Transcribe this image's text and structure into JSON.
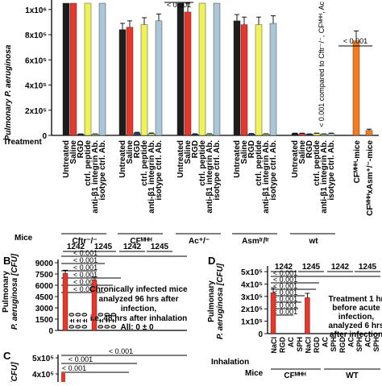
{
  "chart_data": [
    {
      "type": "bar",
      "panel": "A",
      "ylabel": "Pulmonary P. aeruginosa",
      "yticks": [
        "0",
        "2x10⁵",
        "4x10⁵",
        "6x10⁵",
        "8x10⁵",
        "1x10⁶"
      ],
      "ylim": [
        0,
        1050000
      ],
      "row_treatment_label": "Treatment",
      "row_mice_label": "Mice",
      "categories": [
        "Untreated",
        "Saline",
        "RGD",
        "ctrl. peptide",
        "anti-β1 integrin Ab.",
        "isotype ctrl. Ab."
      ],
      "groups": [
        {
          "mice": "Cftr⁻/⁻",
          "values": [
            1060000,
            1060000,
            10000,
            1060000,
            10000,
            1060000
          ],
          "errors": [
            0,
            0,
            2000,
            0,
            2000,
            0
          ]
        },
        {
          "mice": "CFᴹᴴᴴ",
          "values": [
            840000,
            860000,
            20000,
            880000,
            15000,
            910000
          ],
          "errors": [
            50000,
            50000,
            5000,
            55000,
            4000,
            55000
          ]
        },
        {
          "mice": "Ac⁺/⁻",
          "values": [
            1050000,
            980000,
            10000,
            1050000,
            10000,
            1050000
          ],
          "errors": [
            0,
            80000,
            3000,
            0,
            3000,
            0
          ]
        },
        {
          "mice": "Asmᵗʳ/ᵗʳ",
          "values": [
            910000,
            880000,
            12000,
            880000,
            10000,
            890000
          ],
          "errors": [
            50000,
            60000,
            3000,
            60000,
            3000,
            60000
          ]
        },
        {
          "mice": "wt",
          "values": [
            15000,
            15000,
            10000,
            15000,
            10000,
            15000
          ],
          "errors": [
            3000,
            3000,
            2000,
            3000,
            2000,
            3000
          ]
        }
      ],
      "extra_bars": [
        {
          "label": "CFᴹᴴᴴ-mice",
          "value": 750000,
          "error": 80000
        },
        {
          "label": "CFᴹᴴᴴxAsm⁺/⁻-mice",
          "value": 40000,
          "error": 10000
        }
      ],
      "colors": [
        "#1d1d1d",
        "#e8362a",
        "#2a3a78",
        "#f0f25a",
        "#9fe07a",
        "#a9c7d8"
      ],
      "extra_colors": [
        "#f47c20",
        "#f47c20"
      ],
      "annotation_top": "< 0.001",
      "annotation_right": "< 0.001",
      "side_note": "< 0.001 compared to Cftr⁻/⁻, CFᴹᴴᴴ, Ac"
    },
    {
      "type": "bar",
      "panel": "B",
      "ylabel_lines": [
        "Pulmonary",
        "P. aeruginosa [CFU]"
      ],
      "yticks": [
        "0",
        "1500",
        "3000",
        "4500",
        "6000",
        "7500",
        "9000"
      ],
      "ylim": [
        0,
        9000
      ],
      "headers": [
        "1242",
        "1245",
        "1242",
        "1245"
      ],
      "sig": [
        "< 0.001",
        "< 0.001",
        "< 0.001",
        "< 0.001",
        "< 0.001",
        "< 0.001"
      ],
      "values": [
        7600,
        0,
        0,
        0,
        6700,
        0,
        0,
        0
      ],
      "errors": [
        400,
        0,
        0,
        0,
        400,
        0,
        0,
        0
      ],
      "zero_label": "0 ± 0",
      "note": [
        "Chronically infected mice",
        "analyzed 96 hrs after",
        "infection,",
        "i.e. 48 hrs after inhalation"
      ],
      "note_all": "All: 0 ± 0"
    },
    {
      "type": "bar",
      "panel": "C",
      "ylabel_fragment": "sa [CFU]",
      "yticks": [
        "5x10⁵",
        "4x10⁵"
      ],
      "sig": [
        "< 0.001",
        "< 0.001",
        "< 0.001"
      ]
    },
    {
      "type": "bar",
      "panel": "D",
      "ylabel_lines": [
        "Pulmonary",
        "P. aeruginosa [CFU]"
      ],
      "yticks": [
        "0",
        "1x10⁵",
        "2x10⁵",
        "3x10⁵",
        "4x10⁵",
        "5x10⁵"
      ],
      "ylim": [
        0,
        520000
      ],
      "headers": [
        "1242",
        "1245",
        "1242",
        "1245"
      ],
      "sig": [
        "< 0.001",
        "< 0.001",
        "< 0.001",
        "< 0.001",
        "< 0.001",
        "< 0.001",
        "< 0.001"
      ],
      "inhalation_label": "Inhalation",
      "mice_label": "Mice",
      "categories": [
        "NaCl",
        "RGD",
        "AC",
        "SPH",
        "NaCl",
        "RGD",
        "AC",
        "SPH",
        "RGD",
        "AC",
        "SPH",
        "AC",
        "SPH"
      ],
      "values": [
        330000,
        0,
        0,
        0,
        290000,
        0,
        0,
        0,
        0,
        0,
        0,
        0,
        0
      ],
      "errors": [
        40000,
        0,
        0,
        0,
        35000,
        0,
        0,
        0,
        0,
        0,
        0,
        0,
        0
      ],
      "mice_groups": [
        "CFᴹᴴᴴ",
        "WT"
      ],
      "note": [
        "Treatment 1 hr",
        "before acute",
        "infection,",
        "analyzed 6 hrs",
        "after infection"
      ]
    }
  ]
}
